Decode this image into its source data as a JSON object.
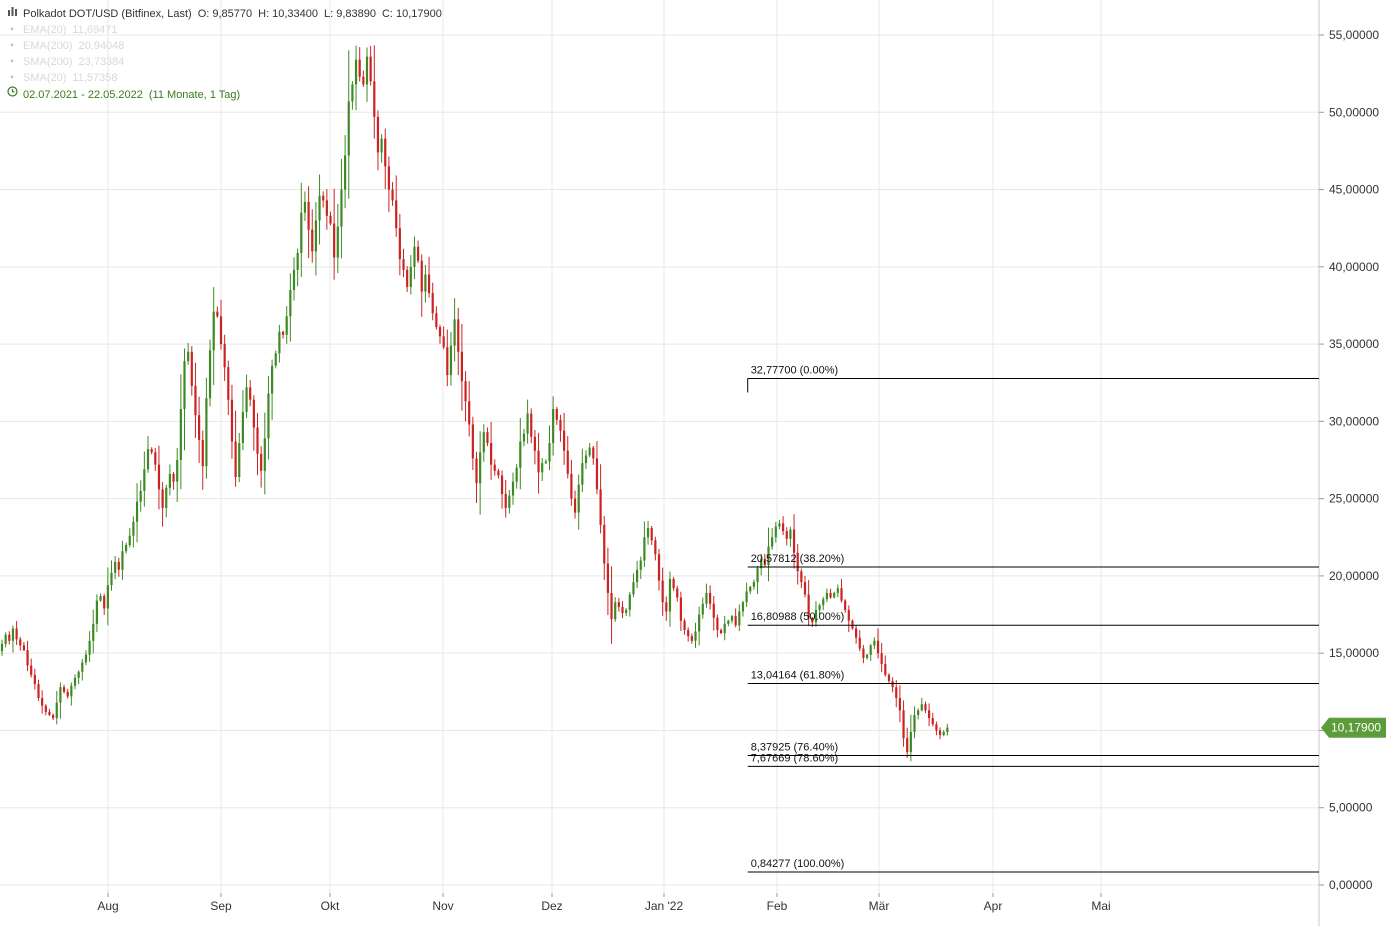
{
  "header": {
    "instrument": "Polkadot DOT/USD (Bitfinex, Last)",
    "ohlc": [
      {
        "label": "O:",
        "value": "9,85770"
      },
      {
        "label": "H:",
        "value": "10,33400"
      },
      {
        "label": "L:",
        "value": "9,83890"
      },
      {
        "label": "C:",
        "value": "10,17900"
      }
    ],
    "indicators": [
      {
        "name": "EMA(20)",
        "value": "11,69471"
      },
      {
        "name": "EMA(200)",
        "value": "20,94048"
      },
      {
        "name": "SMA(200)",
        "value": "23,73384"
      },
      {
        "name": "SMA(20)",
        "value": "11,57358"
      }
    ],
    "range": "02.07.2021 - 22.05.2022",
    "range_detail": "(11 Monate, 1 Tag)",
    "icons": [
      "bar-chart-icon",
      "clock-icon"
    ]
  },
  "colors": {
    "up": "#3d8a24",
    "down": "#cc2222",
    "grid": "#e8e8e8",
    "line": "#000000",
    "price_tag_bg": "#5d9c3a"
  },
  "chart_data": {
    "type": "candlestick",
    "title": "Polkadot DOT/USD (Bitfinex, Last)",
    "xlabel": "",
    "ylabel": "",
    "ylim": [
      0,
      55
    ],
    "y_ticks": [
      "0,00000",
      "5,00000",
      "10,00000",
      "15,00000",
      "20,00000",
      "25,00000",
      "30,00000",
      "35,00000",
      "40,00000",
      "45,00000",
      "50,00000",
      "55,00000"
    ],
    "x_labels": [
      "Aug",
      "Sep",
      "Okt",
      "Nov",
      "Dez",
      "Jan '22",
      "Feb",
      "Mär",
      "Apr",
      "Mai"
    ],
    "last_price_label": "10,17900",
    "last_price": 10.179,
    "grid": true,
    "fibonacci": {
      "start_month_index": 5.9,
      "levels": [
        {
          "price": 32.777,
          "label": "32,77700 (0.00%)"
        },
        {
          "price": 20.57812,
          "label": "20,57812 (38.20%)"
        },
        {
          "price": 16.80988,
          "label": "16,80988 (50.00%)"
        },
        {
          "price": 13.04164,
          "label": "13,04164 (61.80%)"
        },
        {
          "price": 8.37925,
          "label": "8,37925 (76.40%)"
        },
        {
          "price": 7.67669,
          "label": "7,67669 (78.60%)"
        },
        {
          "price": 0.84277,
          "label": "0,84277 (100.00%)"
        }
      ]
    },
    "closes": [
      15.6,
      16.2,
      15.8,
      16.6,
      15.9,
      15.5,
      15.2,
      14.2,
      13.6,
      13.0,
      12.1,
      11.6,
      11.2,
      11.0,
      10.8,
      11.8,
      12.8,
      12.5,
      12.2,
      12.9,
      13.4,
      13.8,
      14.4,
      14.9,
      15.8,
      16.9,
      18.4,
      18.7,
      17.9,
      19.4,
      20.2,
      20.9,
      20.4,
      21.6,
      22.0,
      22.6,
      23.5,
      24.8,
      25.5,
      26.9,
      28.2,
      28.0,
      27.2,
      25.6,
      24.4,
      25.7,
      26.6,
      26.1,
      27.5,
      30.8,
      33.9,
      34.5,
      32.3,
      30.4,
      28.8,
      27.1,
      31.5,
      34.6,
      37.1,
      36.8,
      35.0,
      33.5,
      31.4,
      28.7,
      26.4,
      28.6,
      30.6,
      32.2,
      31.4,
      29.6,
      27.9,
      26.8,
      28.9,
      31.8,
      33.6,
      34.4,
      35.8,
      35.6,
      36.8,
      38.5,
      39.8,
      40.9,
      43.5,
      44.2,
      42.4,
      41.0,
      43.0,
      44.6,
      44.3,
      43.3,
      42.8,
      40.6,
      42.6,
      45.0,
      47.2,
      50.7,
      51.8,
      53.4,
      52.3,
      51.8,
      53.6,
      52.0,
      49.7,
      47.4,
      48.3,
      46.5,
      45.0,
      44.3,
      42.5,
      40.5,
      39.8,
      38.7,
      40.0,
      41.3,
      40.4,
      38.4,
      39.5,
      38.3,
      37.0,
      36.1,
      35.5,
      34.8,
      33.0,
      34.9,
      36.6,
      34.5,
      32.6,
      31.3,
      29.8,
      27.6,
      26.0,
      28.0,
      29.3,
      28.6,
      27.2,
      26.8,
      26.5,
      25.3,
      24.4,
      25.2,
      26.1,
      27.0,
      28.7,
      29.2,
      30.5,
      29.0,
      28.1,
      26.7,
      27.3,
      27.4,
      28.6,
      30.8,
      30.1,
      29.4,
      28.1,
      26.6,
      25.0,
      24.1,
      25.9,
      27.3,
      27.8,
      28.3,
      27.6,
      25.6,
      23.3,
      20.8,
      18.9,
      17.2,
      18.3,
      18.0,
      17.6,
      17.8,
      18.8,
      19.6,
      20.4,
      21.0,
      22.5,
      23.1,
      22.3,
      21.4,
      19.7,
      18.3,
      17.7,
      19.8,
      19.2,
      18.6,
      17.1,
      16.5,
      16.1,
      15.8,
      16.4,
      17.5,
      18.2,
      18.9,
      18.2,
      17.3,
      16.5,
      16.3,
      16.9,
      17.1,
      17.4,
      16.8,
      17.7,
      18.3,
      19.0,
      19.3,
      19.6,
      20.5,
      21.1,
      20.7,
      21.9,
      22.5,
      23.2,
      23.4,
      22.9,
      22.4,
      23.0,
      21.5,
      20.3,
      19.6,
      18.8,
      17.3,
      17.0,
      17.8,
      18.1,
      18.5,
      18.9,
      18.6,
      18.9,
      19.2,
      18.4,
      17.8,
      17.1,
      16.6,
      16.0,
      15.3,
      14.7,
      14.9,
      15.5,
      15.8,
      15.0,
      14.3,
      13.6,
      13.2,
      12.8,
      12.1,
      11.3,
      9.5,
      8.6,
      9.9,
      11.0,
      11.3,
      11.7,
      11.3,
      10.8,
      10.4,
      10.0,
      9.7,
      9.9,
      10.18
    ]
  }
}
